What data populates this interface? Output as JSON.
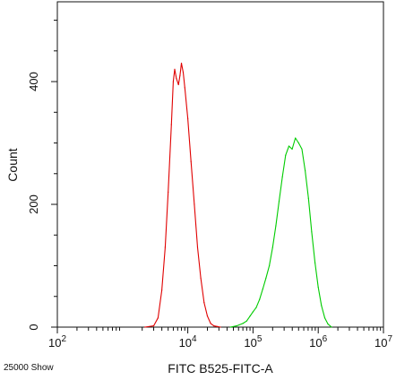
{
  "chart_data": {
    "type": "line",
    "title": "",
    "xlabel": "FITC B525-FITC-A",
    "ylabel": "Count",
    "x_scale": "log10",
    "xlim": [
      100,
      10000000
    ],
    "ylim": [
      0,
      530
    ],
    "x_ticks": [
      {
        "value": 100,
        "base": "10",
        "exp": "2"
      },
      {
        "value": 10000,
        "base": "10",
        "exp": "4"
      },
      {
        "value": 100000,
        "base": "10",
        "exp": "5"
      },
      {
        "value": 1000000,
        "base": "10",
        "exp": "6"
      },
      {
        "value": 10000000,
        "base": "10",
        "exp": "7"
      }
    ],
    "y_ticks": [
      {
        "value": 0,
        "label": "0"
      },
      {
        "value": 200,
        "label": "200"
      },
      {
        "value": 400,
        "label": "400"
      }
    ],
    "grid": false,
    "legend": "none",
    "series": [
      {
        "color": "#e00000",
        "x": [
          2200,
          3000,
          3500,
          4000,
          4500,
          5000,
          5600,
          6000,
          6300,
          6700,
          7200,
          7600,
          8000,
          8500,
          9000,
          10000,
          11200,
          12600,
          14100,
          15800,
          17800,
          20000,
          22400,
          25100,
          28200,
          31600
        ],
        "y": [
          0,
          2,
          15,
          60,
          130,
          220,
          330,
          400,
          420,
          405,
          395,
          410,
          430,
          415,
          390,
          340,
          270,
          200,
          130,
          80,
          40,
          18,
          6,
          2,
          1,
          0
        ]
      },
      {
        "color": "#00cc00",
        "x": [
          45000,
          56000,
          70000,
          80000,
          90000,
          100000,
          112000,
          126000,
          141000,
          158000,
          178000,
          200000,
          224000,
          251000,
          282000,
          316000,
          355000,
          398000,
          447000,
          501000,
          562000,
          631000,
          708000,
          794000,
          891000,
          1000000,
          1120000,
          1260000,
          1410000,
          1600000
        ],
        "y": [
          0,
          2,
          6,
          10,
          18,
          25,
          32,
          45,
          62,
          80,
          100,
          130,
          165,
          205,
          245,
          280,
          295,
          290,
          308,
          300,
          290,
          255,
          210,
          155,
          105,
          65,
          35,
          15,
          5,
          0
        ]
      }
    ],
    "annotations": [
      "25000 Show"
    ]
  }
}
